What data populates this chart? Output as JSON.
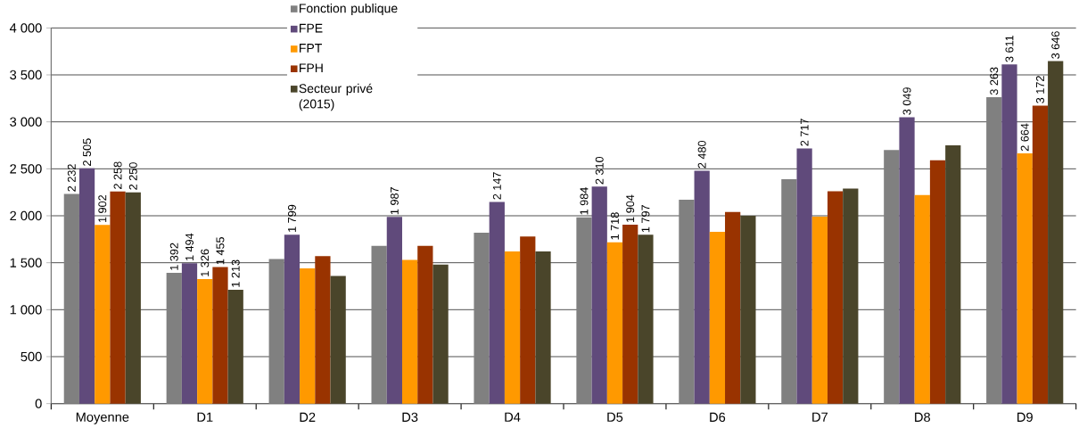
{
  "chart_data": {
    "type": "bar",
    "categories": [
      "Moyenne",
      "D1",
      "D2",
      "D3",
      "D4",
      "D5",
      "D6",
      "D7",
      "D8",
      "D9"
    ],
    "series": [
      {
        "name": "Fonction publique",
        "color": "#808080",
        "values": [
          2232,
          1392,
          1540,
          1680,
          1820,
          1984,
          2170,
          2390,
          2700,
          3263
        ],
        "value_labels": [
          "2 232",
          "1 392",
          null,
          null,
          null,
          "1 984",
          null,
          null,
          null,
          "3 263"
        ]
      },
      {
        "name": "FPE",
        "color": "#604a7b",
        "values": [
          2505,
          1494,
          1799,
          1987,
          2147,
          2310,
          2480,
          2717,
          3049,
          3611
        ],
        "value_labels": [
          "2 505",
          "1 494",
          "1 799",
          "1 987",
          "2 147",
          "2 310",
          "2 480",
          "2 717",
          "3 049",
          "3 611"
        ]
      },
      {
        "name": "FPT",
        "color": "#ff9900",
        "values": [
          1902,
          1326,
          1440,
          1530,
          1620,
          1718,
          1830,
          1990,
          2220,
          2664
        ],
        "value_labels": [
          "1 902",
          "1 326",
          null,
          null,
          null,
          "1 718",
          null,
          null,
          null,
          "2 664"
        ]
      },
      {
        "name": "FPH",
        "color": "#993300",
        "values": [
          2258,
          1455,
          1570,
          1680,
          1780,
          1904,
          2040,
          2260,
          2590,
          3172
        ],
        "value_labels": [
          "2 258",
          "1 455",
          null,
          null,
          null,
          "1 904",
          null,
          null,
          null,
          "3 172"
        ]
      },
      {
        "name": "Secteur privé (2015)",
        "color": "#4a452a",
        "values": [
          2250,
          1213,
          1360,
          1480,
          1620,
          1797,
          2000,
          2290,
          2750,
          3646
        ],
        "value_labels": [
          "2 250",
          "1 213",
          null,
          null,
          null,
          "1 797",
          null,
          null,
          null,
          "3 646"
        ]
      }
    ],
    "ylim": [
      0,
      4000
    ],
    "yticks": [
      0,
      500,
      {
        "value": 1000,
        "label": "1 000"
      },
      {
        "value": 1500,
        "label": "1 500"
      },
      {
        "value": 2000,
        "label": "2 000"
      },
      {
        "value": 2500,
        "label": "2 500"
      },
      {
        "value": 3000,
        "label": "3 000"
      },
      {
        "value": 3500,
        "label": "3 500"
      },
      {
        "value": 4000,
        "label": "4 000"
      }
    ],
    "grid": "y",
    "legend": "top"
  }
}
